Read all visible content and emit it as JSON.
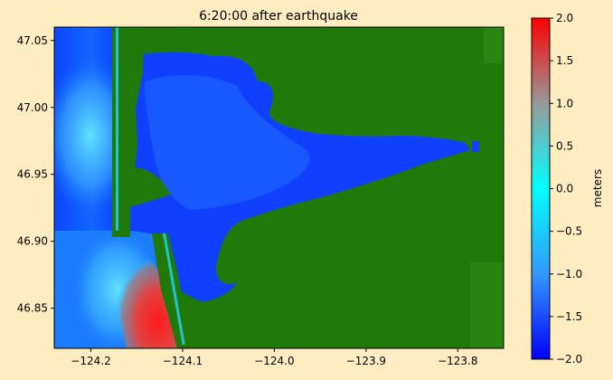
{
  "chart_data": {
    "type": "heatmap",
    "title": "6:20:00 after earthquake",
    "xlabel": "",
    "ylabel": "",
    "xlim": [
      -124.24,
      -123.75
    ],
    "ylim": [
      46.82,
      47.06
    ],
    "x_ticks": [
      -124.2,
      -124.1,
      -124.0,
      -123.9,
      -123.8
    ],
    "x_tick_labels": [
      "−124.2",
      "−124.1",
      "−124.0",
      "−123.9",
      "−123.8"
    ],
    "y_ticks": [
      46.85,
      46.9,
      46.95,
      47.0,
      47.05
    ],
    "y_tick_labels": [
      "46.85",
      "46.90",
      "46.95",
      "47.00",
      "47.05"
    ],
    "grid": false,
    "colorbar": {
      "label": "meters",
      "range": [
        -2.0,
        2.0
      ],
      "ticks": [
        -2.0,
        -1.5,
        -1.0,
        -0.5,
        0.0,
        0.5,
        1.0,
        1.5,
        2.0
      ],
      "tick_labels": [
        "−2.0",
        "−1.5",
        "−1.0",
        "−0.5",
        "0.0",
        "0.5",
        "1.0",
        "1.5",
        "2.0"
      ],
      "colors": [
        {
          "value": -2.0,
          "color": "#0000ff"
        },
        {
          "value": -1.0,
          "color": "#3399ff"
        },
        {
          "value": 0.0,
          "color": "#00ffff"
        },
        {
          "value": 1.0,
          "color": "#999999"
        },
        {
          "value": 2.0,
          "color": "#ff0000"
        }
      ]
    },
    "land_color": "#1f7a0a",
    "background_color": "#ffecc0"
  }
}
